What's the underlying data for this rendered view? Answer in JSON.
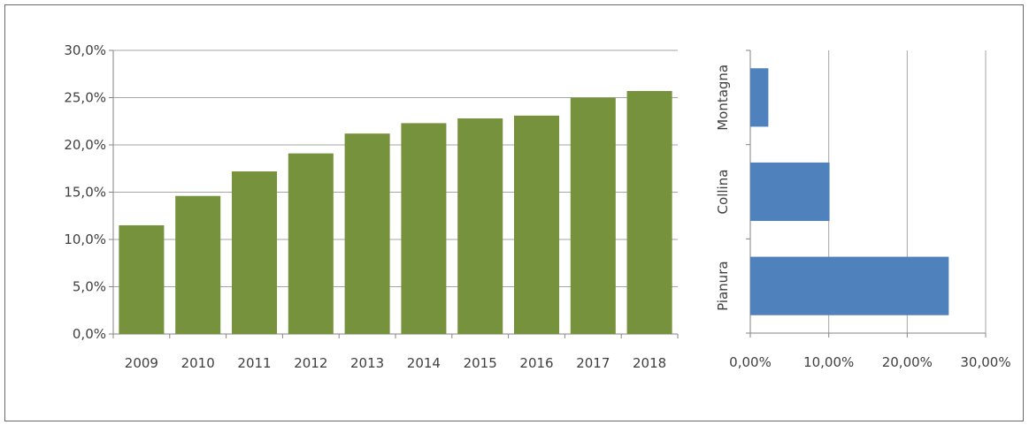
{
  "chart_data": [
    {
      "type": "bar",
      "orientation": "vertical",
      "categories": [
        "2009",
        "2010",
        "2011",
        "2012",
        "2013",
        "2014",
        "2015",
        "2016",
        "2017",
        "2018"
      ],
      "values": [
        11.5,
        14.6,
        17.2,
        19.1,
        21.2,
        22.3,
        22.8,
        23.1,
        25.0,
        25.7
      ],
      "ylim": [
        0,
        30
      ],
      "yticks": [
        "0,0%",
        "5,0%",
        "10,0%",
        "15,0%",
        "20,0%",
        "25,0%",
        "30,0%"
      ],
      "grid": true,
      "color": "#76923c"
    },
    {
      "type": "bar",
      "orientation": "horizontal",
      "categories": [
        "Pianura",
        "Collina",
        "Montagna"
      ],
      "values": [
        25.3,
        10.1,
        2.3
      ],
      "xlim": [
        0,
        30
      ],
      "xticks": [
        "0,00%",
        "10,00%",
        "20,00%",
        "30,00%"
      ],
      "grid": true,
      "color": "#4f81bd"
    }
  ]
}
